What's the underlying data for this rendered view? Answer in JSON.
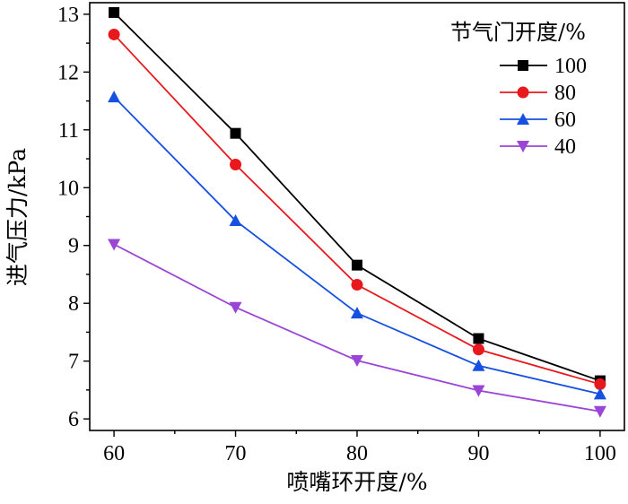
{
  "chart_data": {
    "type": "line",
    "title": "",
    "xlabel": "喷嘴环开度/%",
    "ylabel": "进气压力/kPa",
    "x": [
      60,
      70,
      80,
      90,
      100
    ],
    "xlim": [
      58,
      102
    ],
    "ylim": [
      5.8,
      13.2
    ],
    "xticks": [
      60,
      70,
      80,
      90,
      100
    ],
    "yticks": [
      6,
      7,
      8,
      9,
      10,
      11,
      12,
      13
    ],
    "grid": false,
    "legend": {
      "title": "节气门开度/%",
      "position": "top-right"
    },
    "series": [
      {
        "name": "100",
        "color": "#000000",
        "marker": "square",
        "values": [
          13.03,
          10.94,
          8.66,
          7.39,
          6.66
        ]
      },
      {
        "name": "80",
        "color": "#e8181c",
        "marker": "circle",
        "values": [
          12.65,
          10.4,
          8.32,
          7.2,
          6.6
        ]
      },
      {
        "name": "60",
        "color": "#1550e0",
        "marker": "triangle-up",
        "values": [
          11.57,
          9.43,
          7.83,
          6.92,
          6.43
        ]
      },
      {
        "name": "40",
        "color": "#9b45d6",
        "marker": "triangle-down",
        "values": [
          9.02,
          7.93,
          7.01,
          6.49,
          6.13
        ]
      }
    ]
  }
}
